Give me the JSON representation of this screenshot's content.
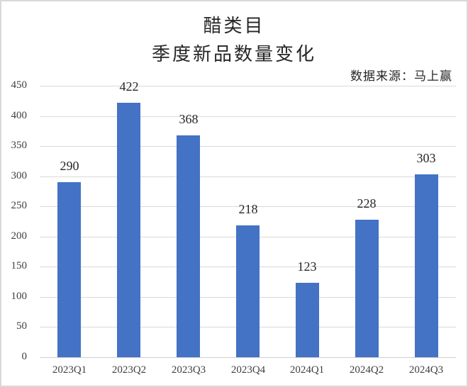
{
  "header": {
    "title_line1": "醋类目",
    "title_line2": "季度新品数量变化",
    "source": "数据来源：马上赢"
  },
  "colors": {
    "bar": "#4472c4",
    "grid": "#d9d9d9",
    "text": "#262626"
  },
  "chart_data": {
    "type": "bar",
    "title": "醋类目 季度新品数量变化",
    "subtitle": "数据来源：马上赢",
    "categories": [
      "2023Q1",
      "2023Q2",
      "2023Q3",
      "2023Q4",
      "2024Q1",
      "2024Q2",
      "2024Q3"
    ],
    "values": [
      290,
      422,
      368,
      218,
      123,
      228,
      303
    ],
    "xlabel": "",
    "ylabel": "",
    "ylim": [
      0,
      450
    ],
    "yticks": [
      0,
      50,
      100,
      150,
      200,
      250,
      300,
      350,
      400,
      450
    ],
    "grid": true,
    "legend": null,
    "data_labels": true
  }
}
